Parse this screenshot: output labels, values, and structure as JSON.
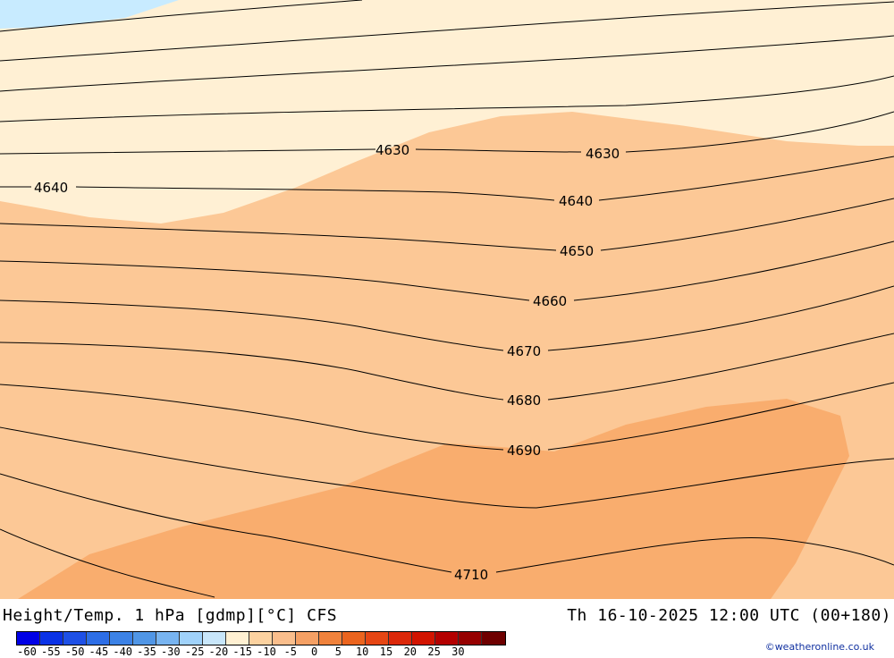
{
  "title_left": "Height/Temp. 1 hPa [gdmp][°C] CFS",
  "title_right": "Th 16-10-2025 12:00 UTC (00+180)",
  "credit": "©weatheronline.co.uk",
  "legend": {
    "colors": [
      "#0000e6",
      "#0a32e6",
      "#1e50e6",
      "#2d6ee6",
      "#3c82e6",
      "#5096e6",
      "#78b4f0",
      "#a0d2fa",
      "#c8e6fa",
      "#fff0d2",
      "#fcd2a0",
      "#fabe8c",
      "#f5a064",
      "#f0823c",
      "#eb641e",
      "#e64614",
      "#dc280a",
      "#d21400",
      "#b40000",
      "#960000",
      "#6e0000"
    ],
    "ticks": [
      "-60",
      "-55",
      "-50",
      "-45",
      "-40",
      "-35",
      "-30",
      "-25",
      "-20",
      "-15",
      "-10",
      "-5",
      "0",
      "5",
      "10",
      "15",
      "20",
      "25",
      "30"
    ]
  },
  "contour_labels": {
    "c4630a": "4630",
    "c4630b": "4630",
    "c4640a": "4640",
    "c4640b": "4640",
    "c4650": "4650",
    "c4660": "4660",
    "c4670": "4670",
    "c4680": "4680",
    "c4690": "4690",
    "c4710": "4710"
  },
  "fill_colors": {
    "cold_zone": "#c8ebff",
    "temp_m15": "#fff0d4",
    "temp_m10": "#fcc896",
    "temp_m5": "#f9ad6e"
  }
}
